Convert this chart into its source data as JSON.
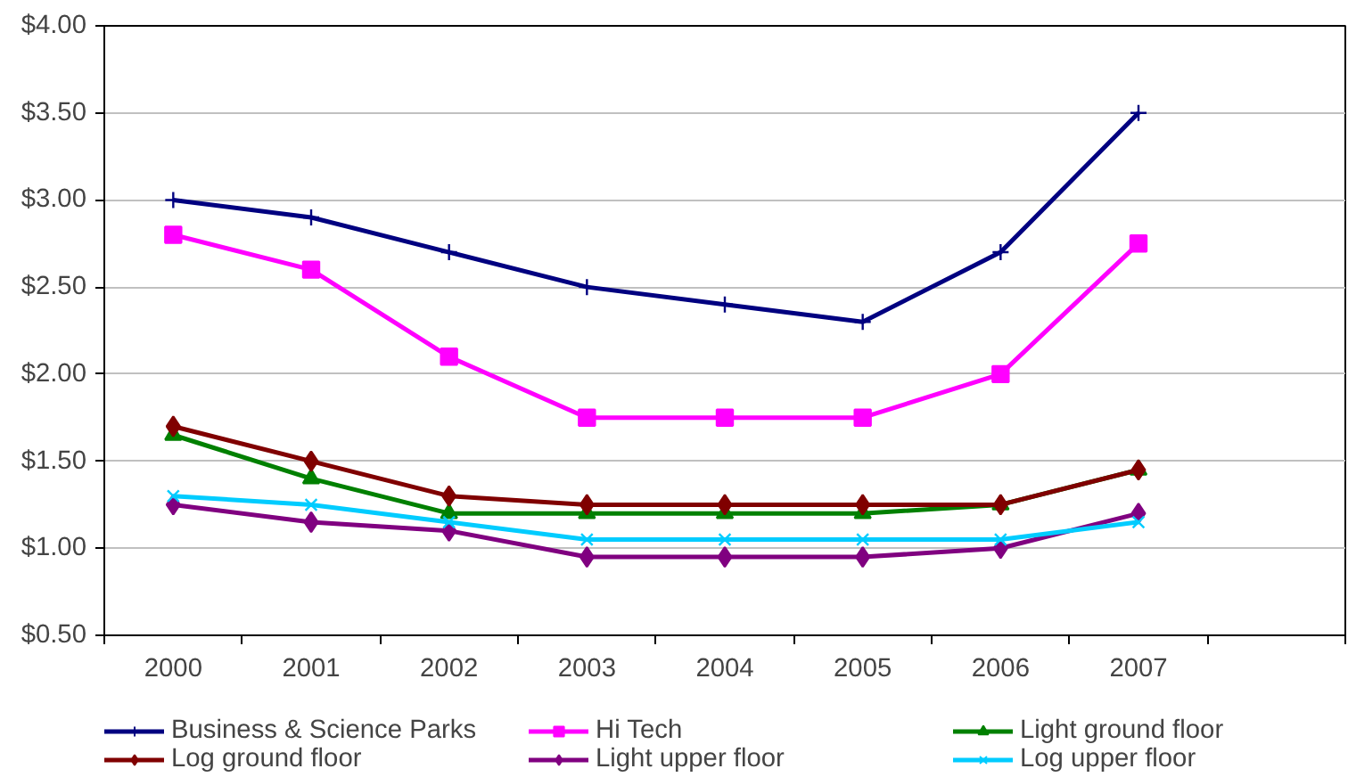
{
  "chart_data": {
    "type": "line",
    "categories": [
      "2000",
      "2001",
      "2002",
      "2003",
      "2004",
      "2005",
      "2006",
      "2007",
      null
    ],
    "ylim": [
      0.5,
      4.0
    ],
    "yticks": [
      {
        "value": 0.5,
        "label": "$0.50"
      },
      {
        "value": 1.0,
        "label": "$1.00"
      },
      {
        "value": 1.5,
        "label": "$1.50"
      },
      {
        "value": 2.0,
        "label": "$2.00"
      },
      {
        "value": 2.5,
        "label": "$2.50"
      },
      {
        "value": 3.0,
        "label": "$3.00"
      },
      {
        "value": 3.5,
        "label": "$3.50"
      },
      {
        "value": 4.0,
        "label": "$4.00"
      }
    ],
    "grid": "y",
    "legend": "bottom",
    "series": [
      {
        "name": "Business & Science Parks",
        "color": "#000080",
        "marker": "cross",
        "values": [
          3.0,
          2.9,
          2.7,
          2.5,
          2.4,
          2.3,
          2.7,
          3.5,
          null
        ]
      },
      {
        "name": "Hi Tech",
        "color": "#ff00ff",
        "marker": "square",
        "values": [
          2.8,
          2.6,
          2.1,
          1.75,
          1.75,
          1.75,
          2.0,
          2.75,
          null
        ]
      },
      {
        "name": "Light ground floor",
        "color": "#008000",
        "marker": "triangle",
        "values": [
          1.65,
          1.4,
          1.2,
          1.2,
          1.2,
          1.2,
          1.25,
          1.45,
          null
        ]
      },
      {
        "name": "Log ground floor",
        "color": "#800000",
        "marker": "diamond",
        "values": [
          1.7,
          1.5,
          1.3,
          1.25,
          1.25,
          1.25,
          1.25,
          1.45,
          null
        ]
      },
      {
        "name": "Light upper floor",
        "color": "#800080",
        "marker": "diamond",
        "values": [
          1.25,
          1.15,
          1.1,
          0.95,
          0.95,
          0.95,
          1.0,
          1.2,
          null
        ]
      },
      {
        "name": "Log upper floor",
        "color": "#00ccff",
        "marker": "x",
        "values": [
          1.3,
          1.25,
          1.15,
          1.05,
          1.05,
          1.05,
          1.05,
          1.15,
          null
        ]
      }
    ]
  }
}
